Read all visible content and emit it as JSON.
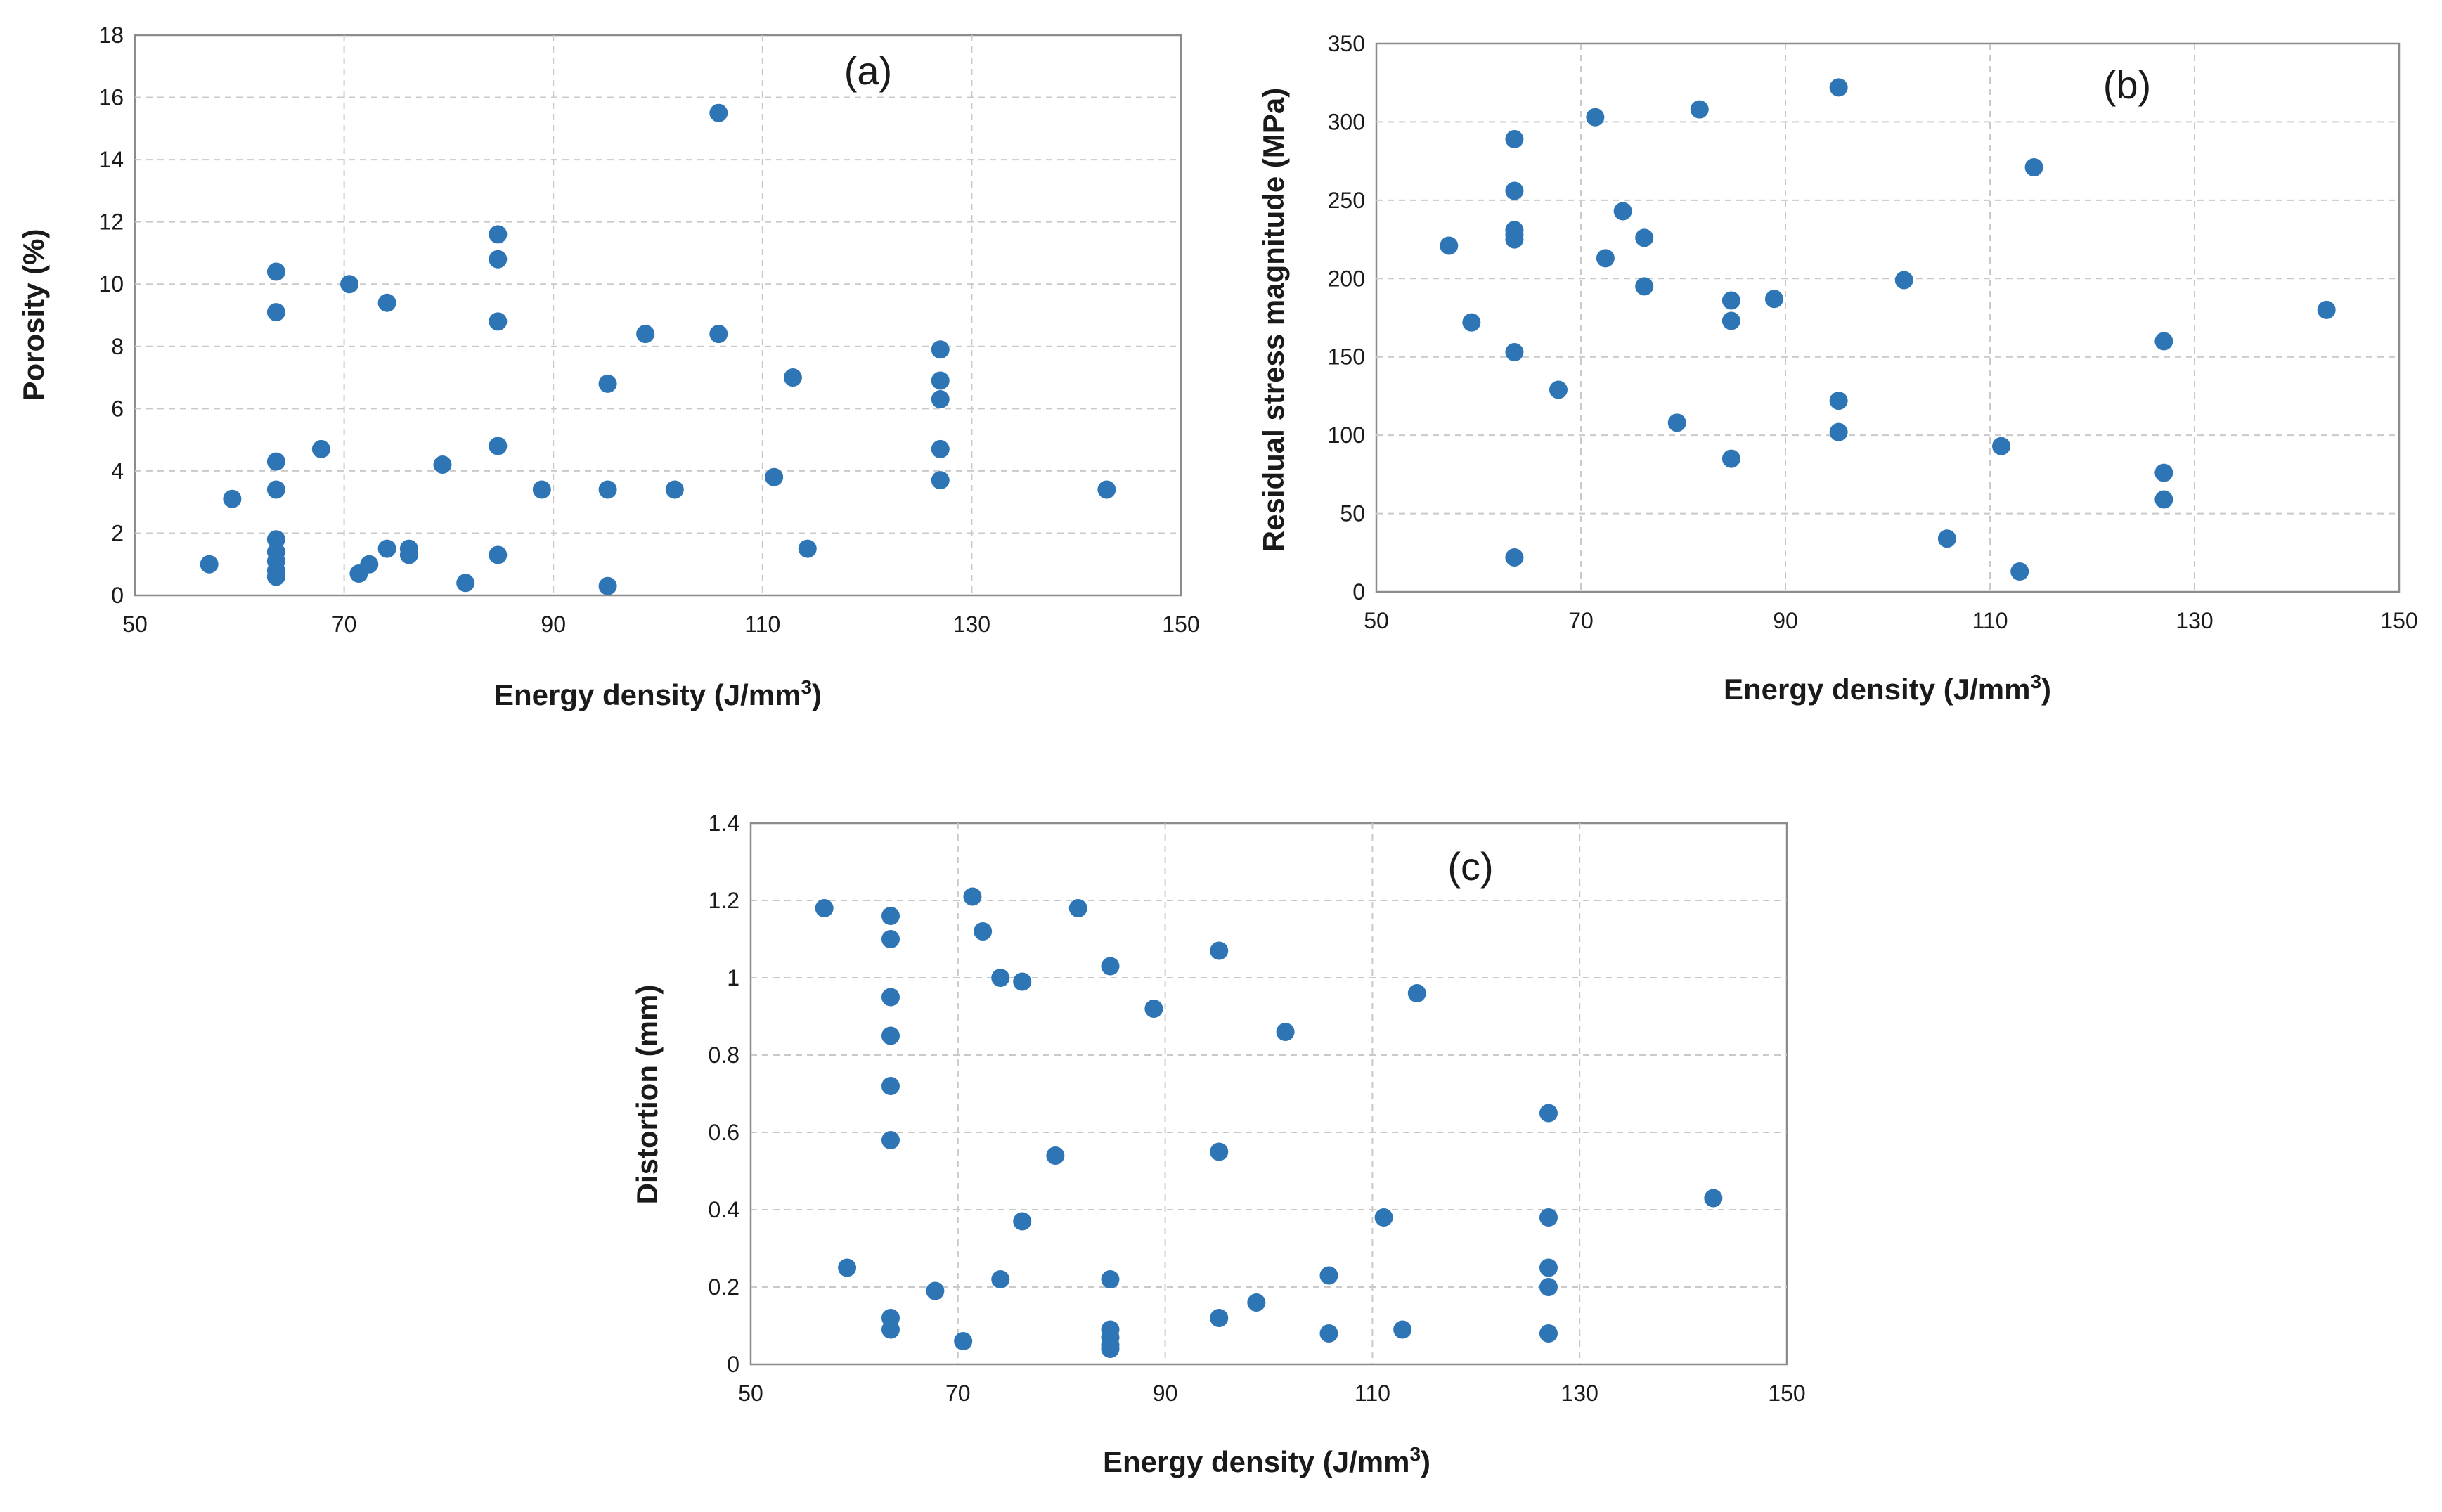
{
  "chart_data": [
    {
      "type": "scatter",
      "panel_label": "(a)",
      "xlabel": "Energy density (J/mm",
      "xlabel_sup": "3",
      "xlabel_end": ")",
      "ylabel": "Porosity (%)",
      "xlim": [
        50,
        150
      ],
      "ylim": [
        0,
        18
      ],
      "xticks": [
        "50",
        "70",
        "90",
        "110",
        "130",
        "150"
      ],
      "yticks": [
        "0",
        "2",
        "4",
        "6",
        "8",
        "10",
        "12",
        "14",
        "16",
        "18"
      ],
      "grid": true,
      "color": "#2e75b6",
      "series": [
        {
          "name": "Porosity",
          "x": [
            57.1,
            59.3,
            63.5,
            63.5,
            63.5,
            63.5,
            63.5,
            63.5,
            63.5,
            63.5,
            63.5,
            67.8,
            70.5,
            71.4,
            72.4,
            74.1,
            74.1,
            76.2,
            76.2,
            79.4,
            81.6,
            84.7,
            84.7,
            84.7,
            84.7,
            84.7,
            88.9,
            95.2,
            95.2,
            95.2,
            98.8,
            101.6,
            105.8,
            105.8,
            111.1,
            112.9,
            114.3,
            127.0,
            127.0,
            127.0,
            127.0,
            127.0,
            142.9
          ],
          "y": [
            1.0,
            3.1,
            10.4,
            9.1,
            4.3,
            3.4,
            1.8,
            1.4,
            1.1,
            0.8,
            0.6,
            4.7,
            10.0,
            0.7,
            1.0,
            9.4,
            1.5,
            1.5,
            1.3,
            4.2,
            0.4,
            11.6,
            10.8,
            8.8,
            4.8,
            1.3,
            3.4,
            6.8,
            3.4,
            0.3,
            8.4,
            3.4,
            15.5,
            8.4,
            3.8,
            7.0,
            1.5,
            7.9,
            6.9,
            6.3,
            4.7,
            3.7,
            3.4
          ]
        }
      ]
    },
    {
      "type": "scatter",
      "panel_label": "(b)",
      "xlabel": "Energy density (J/mm",
      "xlabel_sup": "3",
      "xlabel_end": ")",
      "ylabel": "Residual stress magnitude (MPa)",
      "xlim": [
        50,
        150
      ],
      "ylim": [
        0,
        350
      ],
      "xticks": [
        "50",
        "70",
        "90",
        "110",
        "130",
        "150"
      ],
      "yticks": [
        "0",
        "50",
        "100",
        "150",
        "200",
        "250",
        "300",
        "350"
      ],
      "grid": true,
      "color": "#2e75b6",
      "series": [
        {
          "name": "Residual stress",
          "x": [
            57.1,
            59.3,
            63.5,
            63.5,
            63.5,
            63.5,
            63.5,
            63.5,
            63.5,
            67.8,
            71.4,
            72.4,
            74.1,
            76.2,
            76.2,
            79.4,
            81.6,
            84.7,
            84.7,
            84.7,
            88.9,
            95.2,
            95.2,
            95.2,
            101.6,
            105.8,
            111.1,
            112.9,
            114.3,
            127.0,
            127.0,
            127.0,
            142.9
          ],
          "y": [
            221,
            172,
            289,
            256,
            231,
            228,
            225,
            153,
            22,
            129,
            303,
            213,
            243,
            226,
            195,
            108,
            308,
            186,
            173,
            85,
            187,
            322,
            122,
            102,
            199,
            34,
            93,
            13,
            271,
            160,
            76,
            59,
            180
          ]
        }
      ]
    },
    {
      "type": "scatter",
      "panel_label": "(c)",
      "xlabel": "Energy density (J/mm",
      "xlabel_sup": "3",
      "xlabel_end": ")",
      "ylabel": "Distortion (mm)",
      "xlim": [
        50,
        150
      ],
      "ylim": [
        0,
        1.4
      ],
      "xticks": [
        "50",
        "70",
        "90",
        "110",
        "130",
        "150"
      ],
      "yticks": [
        "0",
        "0.2",
        "0.4",
        "0.6",
        "0.8",
        "1",
        "1.2",
        "1.4"
      ],
      "grid": true,
      "color": "#2e75b6",
      "series": [
        {
          "name": "Distortion",
          "x": [
            57.1,
            59.3,
            63.5,
            63.5,
            63.5,
            63.5,
            63.5,
            63.5,
            63.5,
            63.5,
            67.8,
            70.5,
            71.4,
            72.4,
            74.1,
            74.1,
            76.2,
            76.2,
            79.4,
            81.6,
            84.7,
            84.7,
            84.7,
            84.7,
            84.7,
            84.7,
            88.9,
            95.2,
            95.2,
            95.2,
            98.8,
            101.6,
            105.8,
            105.8,
            111.1,
            112.9,
            114.3,
            127.0,
            127.0,
            127.0,
            127.0,
            127.0,
            142.9
          ],
          "y": [
            1.18,
            0.25,
            1.16,
            1.1,
            0.95,
            0.85,
            0.72,
            0.58,
            0.12,
            0.09,
            0.19,
            0.06,
            1.21,
            1.12,
            1.0,
            0.22,
            0.99,
            0.37,
            0.54,
            1.18,
            1.03,
            0.22,
            0.09,
            0.07,
            0.05,
            0.04,
            0.92,
            1.07,
            0.55,
            0.12,
            0.16,
            0.86,
            0.23,
            0.08,
            0.38,
            0.09,
            0.96,
            0.65,
            0.38,
            0.25,
            0.2,
            0.08,
            0.43
          ]
        }
      ]
    }
  ]
}
